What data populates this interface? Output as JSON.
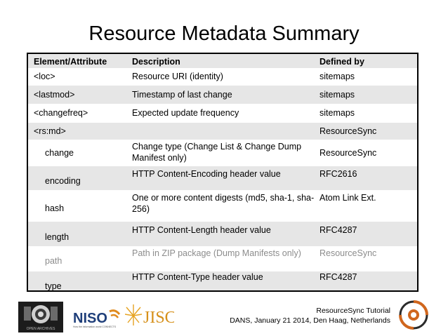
{
  "title": "Resource Metadata Summary",
  "table": {
    "headers": [
      "Element/Attribute",
      "Description",
      "Defined by"
    ],
    "rows": [
      {
        "element": "<loc>",
        "description": "Resource URI (identity)",
        "defined_by": "sitemaps"
      },
      {
        "element": "<lastmod>",
        "description": "Timestamp of last change",
        "defined_by": "sitemaps"
      },
      {
        "element": "<changefreq>",
        "description": "Expected update frequency",
        "defined_by": "sitemaps"
      },
      {
        "element": "<rs:md>",
        "description": "",
        "defined_by": "ResourceSync"
      },
      {
        "element": "change",
        "description": "Change type (Change List & Change Dump Manifest only)",
        "defined_by": "ResourceSync"
      },
      {
        "element": "encoding",
        "description": "HTTP Content-Encoding header value",
        "defined_by": "RFC2616"
      },
      {
        "element": "hash",
        "description": "One or more content digests (md5, sha-1, sha-256)",
        "defined_by": "Atom Link Ext."
      },
      {
        "element": "length",
        "description": "HTTP Content-Length header value",
        "defined_by": "RFC4287"
      },
      {
        "element": "path",
        "description": "Path in ZIP package (Dump Manifests only)",
        "defined_by": "ResourceSync"
      },
      {
        "element": "type",
        "description": "HTTP Content-Type header value",
        "defined_by": "RFC4287"
      }
    ]
  },
  "footer": {
    "line1": "ResourceSync Tutorial",
    "line2": "DANS, January 21 2014, Den Haag, Netherlands",
    "logos": {
      "niso": "NISO",
      "niso_tagline": "How the information world CONNECTS",
      "jisc": "JISC",
      "oa": "OPEN ARCHIVES"
    }
  }
}
